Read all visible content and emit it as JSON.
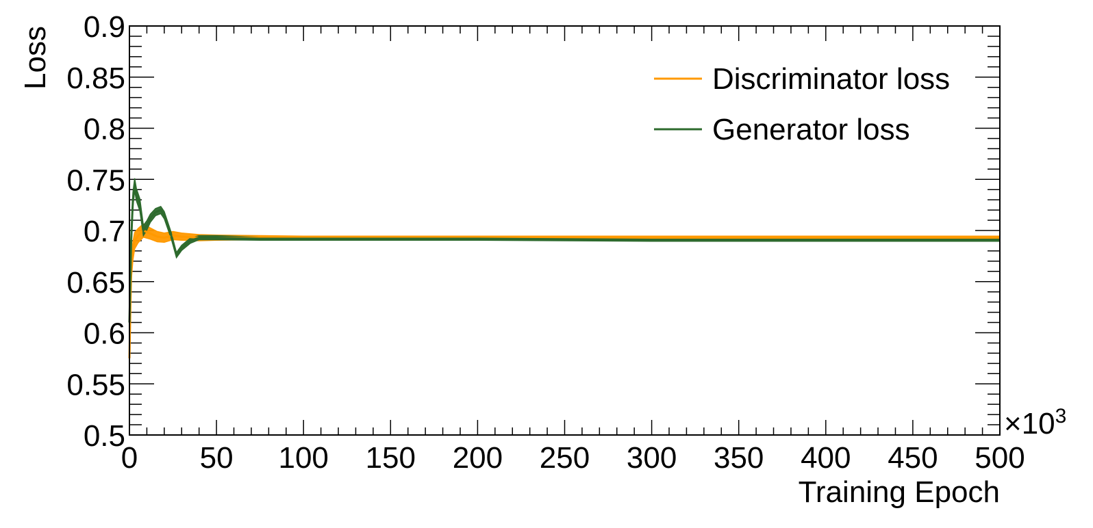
{
  "chart_data": {
    "type": "line",
    "xlabel": "Training Epoch",
    "ylabel": "Loss",
    "x_multiplier": "×10",
    "x_multiplier_exp": "3",
    "xlim": [
      0,
      500
    ],
    "ylim": [
      0.5,
      0.9
    ],
    "x_ticks": [
      "0",
      "50",
      "100",
      "150",
      "200",
      "250",
      "300",
      "350",
      "400",
      "450",
      "500"
    ],
    "y_ticks": [
      "0.5",
      "0.55",
      "0.6",
      "0.65",
      "0.7",
      "0.75",
      "0.8",
      "0.85",
      "0.9"
    ],
    "grid": false,
    "legend_position": "top-right",
    "series": [
      {
        "name": "Discriminator loss",
        "color": "#ff9900",
        "x": [
          0,
          0.5,
          1,
          2,
          3,
          5,
          8,
          12,
          16,
          20,
          25,
          30,
          40,
          50,
          75,
          100,
          150,
          200,
          300,
          400,
          500
        ],
        "y": [
          0.575,
          0.62,
          0.66,
          0.68,
          0.69,
          0.695,
          0.7,
          0.697,
          0.694,
          0.693,
          0.695,
          0.694,
          0.693,
          0.693,
          0.693,
          0.693,
          0.693,
          0.693,
          0.693,
          0.693,
          0.693
        ],
        "band": [
          0.018,
          0.02,
          0.02,
          0.018,
          0.016,
          0.014,
          0.013,
          0.011,
          0.01,
          0.009,
          0.008,
          0.007,
          0.006,
          0.005,
          0.004,
          0.003,
          0.003,
          0.003,
          0.003,
          0.003,
          0.003
        ]
      },
      {
        "name": "Generator loss",
        "color": "#2d6a2d",
        "x": [
          0,
          0.5,
          1,
          2,
          3,
          4,
          6,
          8,
          10,
          12,
          15,
          18,
          20,
          24,
          27,
          30,
          35,
          40,
          50,
          75,
          100,
          150,
          200,
          300,
          400,
          500
        ],
        "y": [
          0.61,
          0.65,
          0.69,
          0.73,
          0.745,
          0.735,
          0.725,
          0.7,
          0.705,
          0.712,
          0.718,
          0.72,
          0.715,
          0.695,
          0.676,
          0.683,
          0.69,
          0.693,
          0.693,
          0.692,
          0.692,
          0.692,
          0.692,
          0.691,
          0.691,
          0.691
        ],
        "band": [
          0.02,
          0.02,
          0.018,
          0.014,
          0.012,
          0.012,
          0.012,
          0.01,
          0.009,
          0.008,
          0.007,
          0.007,
          0.007,
          0.006,
          0.005,
          0.005,
          0.005,
          0.004,
          0.004,
          0.003,
          0.003,
          0.003,
          0.003,
          0.003,
          0.003,
          0.003
        ]
      }
    ]
  }
}
